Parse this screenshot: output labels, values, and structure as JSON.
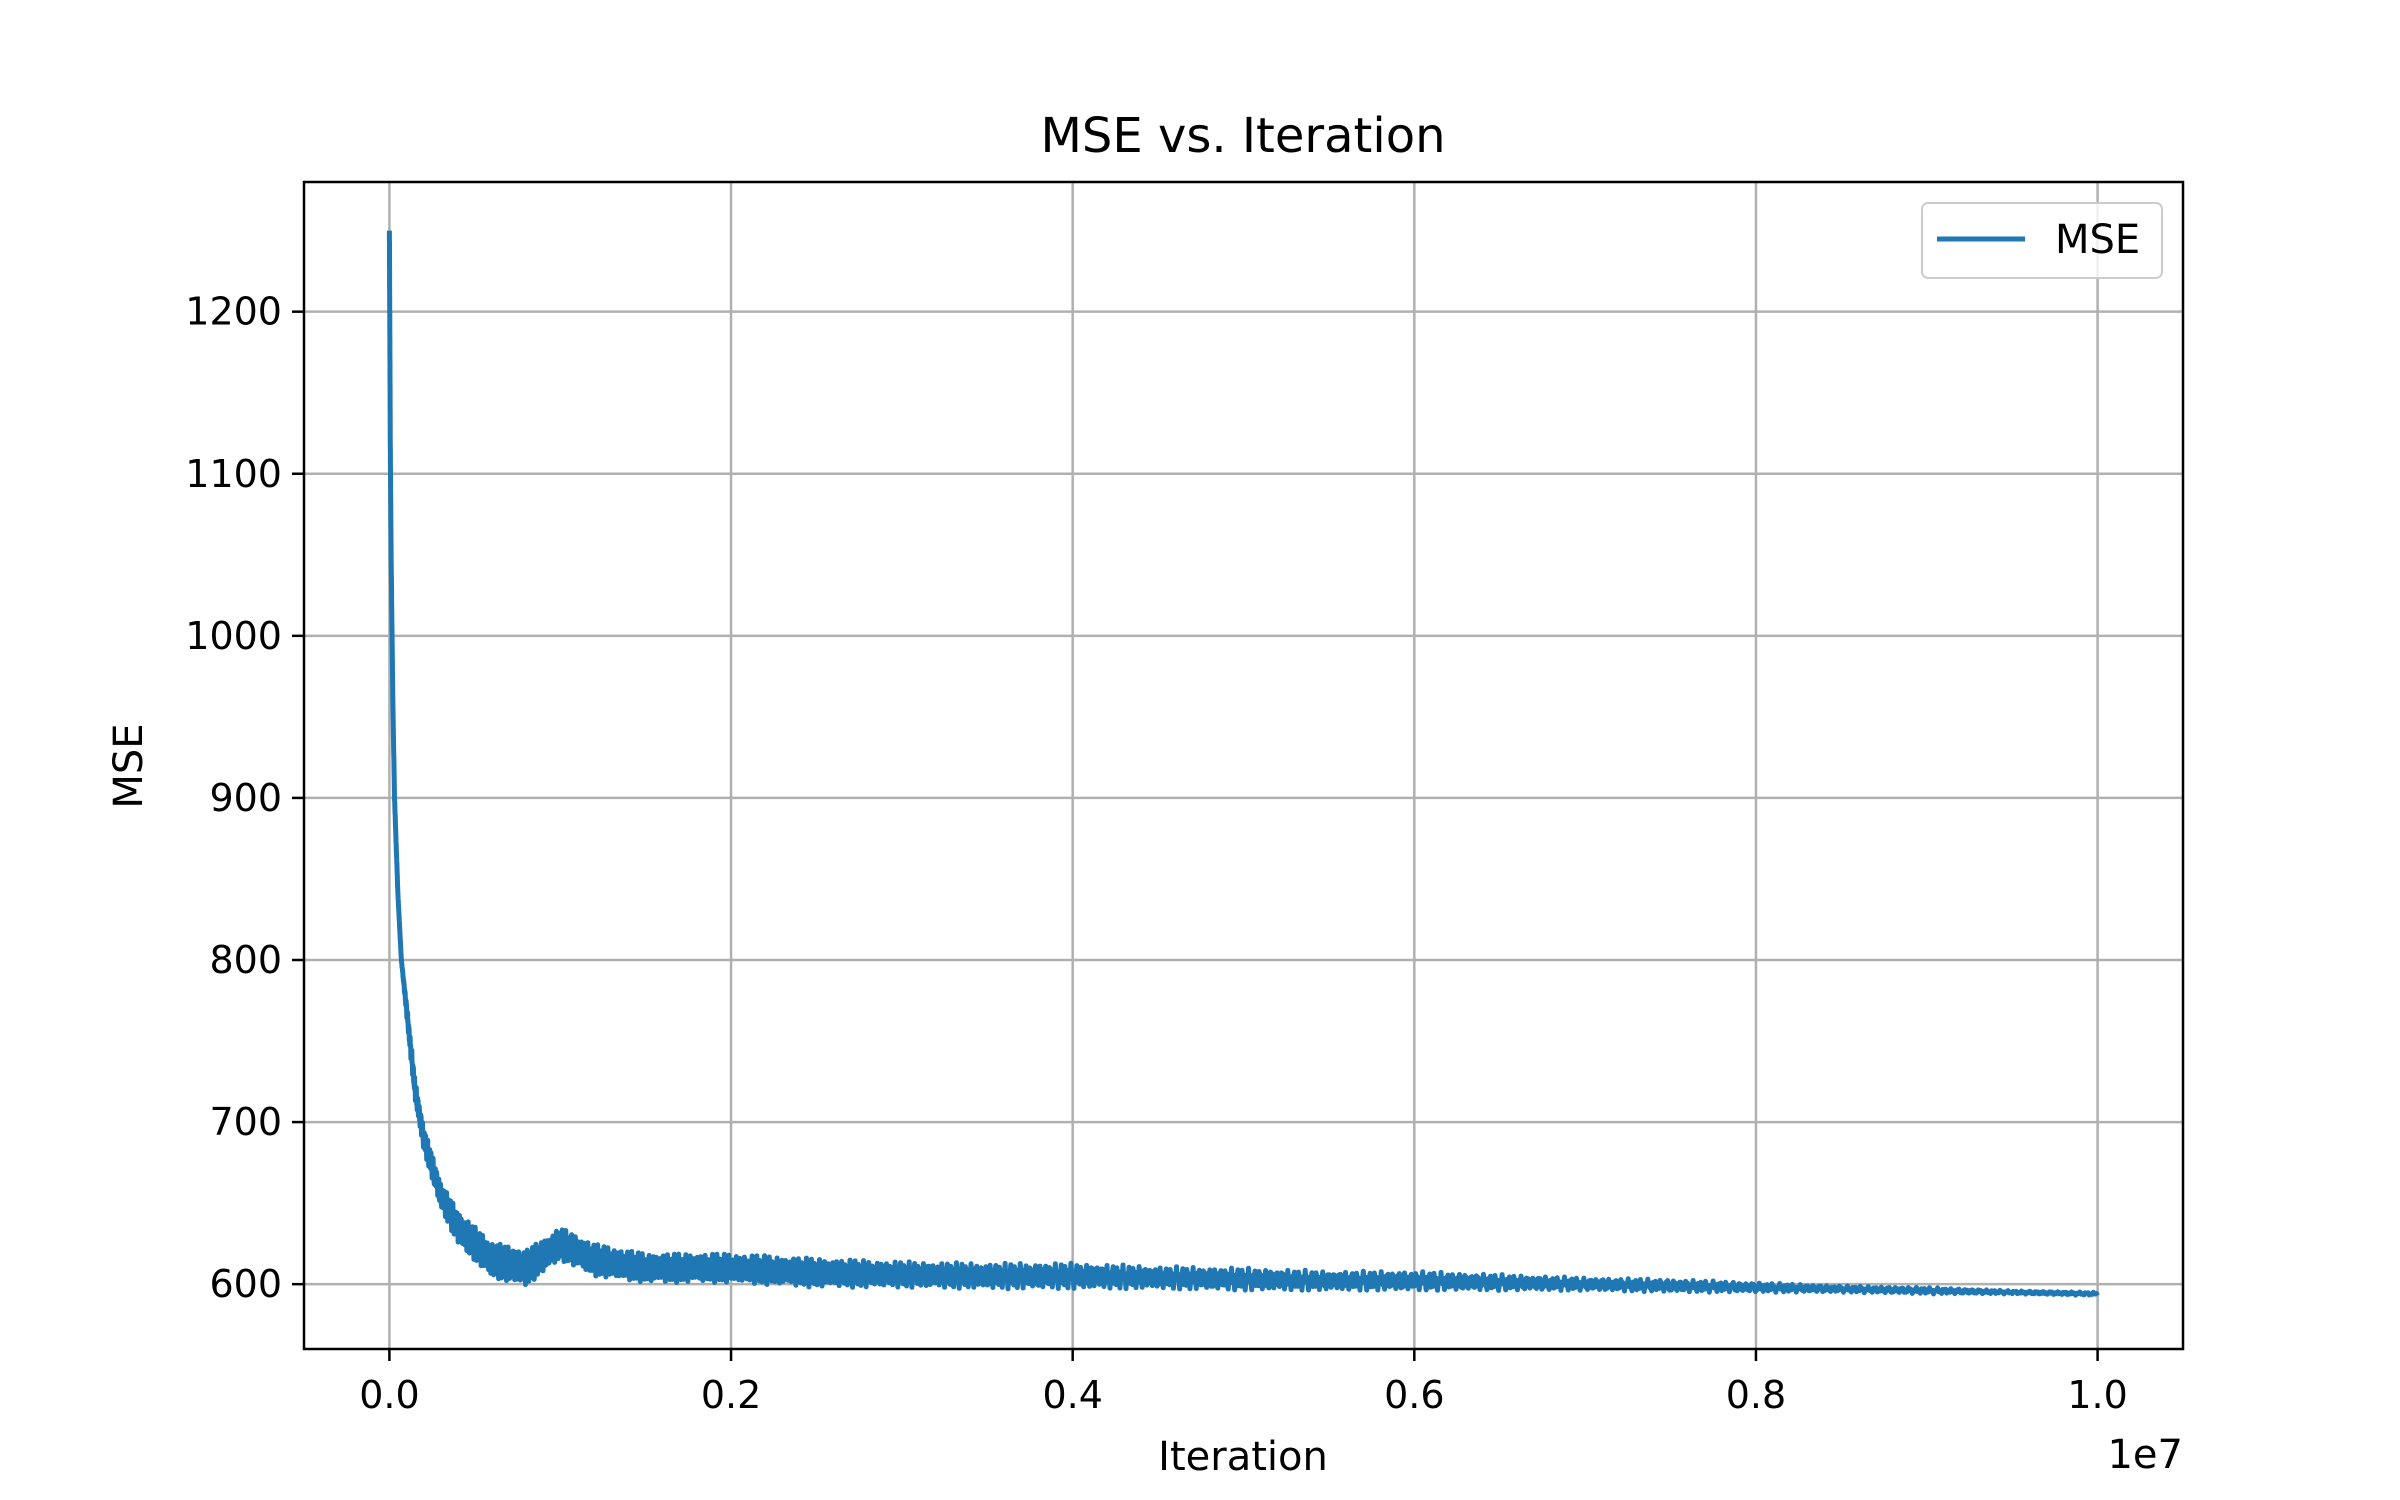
{
  "chart_data": {
    "type": "line",
    "title": "MSE vs. Iteration",
    "xlabel": "Iteration",
    "ylabel": "MSE",
    "x_offset_label": "1e7",
    "xlim": [
      -0.05,
      1.05
    ],
    "ylim": [
      560,
      1280
    ],
    "x_ticks": [
      0.0,
      0.2,
      0.4,
      0.6,
      0.8,
      1.0
    ],
    "x_tick_labels": [
      "0.0",
      "0.2",
      "0.4",
      "0.6",
      "0.8",
      "1.0"
    ],
    "y_ticks": [
      600,
      700,
      800,
      900,
      1000,
      1100,
      1200
    ],
    "y_tick_labels": [
      "600",
      "700",
      "800",
      "900",
      "1000",
      "1100",
      "1200"
    ],
    "grid": true,
    "legend_position": "top-right",
    "series": [
      {
        "name": "MSE",
        "color": "#1f77b4",
        "x": [
          0.0,
          0.0005,
          0.001,
          0.002,
          0.003,
          0.005,
          0.007,
          0.01,
          0.015,
          0.02,
          0.03,
          0.04,
          0.06,
          0.08,
          0.1,
          0.12,
          0.15,
          0.2,
          0.25,
          0.3,
          0.35,
          0.4,
          0.45,
          0.5,
          0.55,
          0.6,
          0.65,
          0.7,
          0.75,
          0.8,
          0.85,
          0.9,
          0.95,
          1.0
        ],
        "y": [
          1250,
          1120,
          1050,
          960,
          900,
          840,
          800,
          770,
          720,
          690,
          655,
          635,
          615,
          610,
          625,
          615,
          610,
          610,
          607,
          606,
          605,
          605,
          604,
          603,
          602,
          602,
          601,
          600,
          599,
          598,
          597,
          596,
          595,
          594
        ],
        "noise_amplitude": [
          0,
          0,
          0,
          0,
          0,
          0,
          0,
          4,
          6,
          7,
          8,
          10,
          11,
          11,
          10,
          10,
          9,
          9,
          9,
          8,
          8,
          8,
          7,
          7,
          6,
          6,
          5,
          4,
          4,
          3,
          2,
          2,
          1,
          1
        ]
      }
    ]
  }
}
